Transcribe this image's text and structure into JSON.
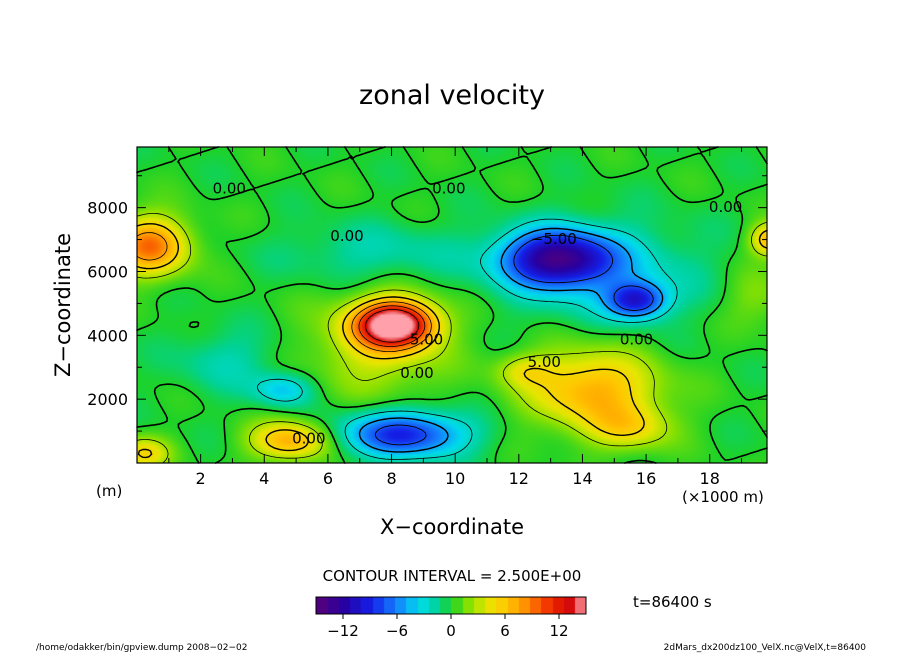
{
  "chart_data": {
    "type": "heatmap",
    "title": "zonal velocity",
    "xlabel": "X−coordinate",
    "ylabel": "Z−coordinate",
    "x_unit_left": "(m)",
    "x_unit_right": "(×1000 m)",
    "xlim": [
      0,
      19.8
    ],
    "ylim": [
      0,
      9900
    ],
    "x_ticks": [
      {
        "value": 2,
        "label": "2"
      },
      {
        "value": 4,
        "label": "4"
      },
      {
        "value": 6,
        "label": "6"
      },
      {
        "value": 8,
        "label": "8"
      },
      {
        "value": 10,
        "label": "10"
      },
      {
        "value": 12,
        "label": "12"
      },
      {
        "value": 14,
        "label": "14"
      },
      {
        "value": 16,
        "label": "16"
      },
      {
        "value": 18,
        "label": "18"
      }
    ],
    "y_ticks": [
      {
        "value": 2000,
        "label": "2000"
      },
      {
        "value": 4000,
        "label": "4000"
      },
      {
        "value": 6000,
        "label": "6000"
      },
      {
        "value": 8000,
        "label": "8000"
      }
    ],
    "contour_interval_text": "CONTOUR INTERVAL = 2.500E+00",
    "time_text": "t=86400 s",
    "colorbar": {
      "range": [
        -15,
        15
      ],
      "ticks": [
        {
          "value": -12,
          "label": "−12"
        },
        {
          "value": -6,
          "label": "−6"
        },
        {
          "value": 0,
          "label": "0"
        },
        {
          "value": 6,
          "label": "6"
        },
        {
          "value": 12,
          "label": "12"
        }
      ]
    },
    "contour_labels": [
      {
        "text": "0.00",
        "x": 2.9,
        "y": 8580
      },
      {
        "text": "0.00",
        "x": 9.8,
        "y": 8580
      },
      {
        "text": "0.00",
        "x": 18.5,
        "y": 8000
      },
      {
        "text": "0.00",
        "x": 6.6,
        "y": 7100
      },
      {
        "text": "−5.00",
        "x": 13.1,
        "y": 7000
      },
      {
        "text": "5.00",
        "x": 9.1,
        "y": 3850
      },
      {
        "text": "0.00",
        "x": 15.7,
        "y": 3850
      },
      {
        "text": "5.00",
        "x": 12.8,
        "y": 3150
      },
      {
        "text": "0.00",
        "x": 8.8,
        "y": 2800
      },
      {
        "text": "0.00",
        "x": 5.4,
        "y": 750
      }
    ],
    "features": [
      {
        "cx": 8.1,
        "cz": 4350,
        "sx": 1.2,
        "sz": 700,
        "amp": 16
      },
      {
        "cx": 7.6,
        "cz": 3700,
        "sx": 2.0,
        "sz": 1500,
        "amp": 4
      },
      {
        "cx": 14.3,
        "cz": 2300,
        "sx": 2.0,
        "sz": 1200,
        "amp": 7
      },
      {
        "cx": 15.5,
        "cz": 1100,
        "sx": 1.3,
        "sz": 700,
        "amp": 4
      },
      {
        "cx": 12.2,
        "cz": 2900,
        "sx": 0.9,
        "sz": 500,
        "amp": 3
      },
      {
        "cx": 0.4,
        "cz": 6800,
        "sx": 1.2,
        "sz": 900,
        "amp": 9
      },
      {
        "cx": 19.9,
        "cz": 7000,
        "sx": 0.6,
        "sz": 500,
        "amp": 7
      },
      {
        "cx": 4.8,
        "cz": 700,
        "sx": 1.2,
        "sz": 600,
        "amp": 7
      },
      {
        "cx": 0.2,
        "cz": 300,
        "sx": 0.8,
        "sz": 500,
        "amp": 5
      },
      {
        "cx": 13.2,
        "cz": 6400,
        "sx": 1.7,
        "sz": 850,
        "amp": -12
      },
      {
        "cx": 15.7,
        "cz": 5100,
        "sx": 0.9,
        "sz": 550,
        "amp": -9
      },
      {
        "cx": 14.7,
        "cz": 6000,
        "sx": 3.0,
        "sz": 1500,
        "amp": -3
      },
      {
        "cx": 8.4,
        "cz": 900,
        "sx": 1.9,
        "sz": 700,
        "amp": -9
      },
      {
        "cx": 4.6,
        "cz": 2300,
        "sx": 0.9,
        "sz": 500,
        "amp": -4
      },
      {
        "cx": 2.8,
        "cz": 3200,
        "sx": 1.6,
        "sz": 1000,
        "amp": -2
      },
      {
        "cx": 7.5,
        "cz": 6600,
        "sx": 2.8,
        "sz": 900,
        "amp": -2
      },
      {
        "cx": 19.5,
        "cz": 5200,
        "sx": 1.0,
        "sz": 900,
        "amp": 2
      }
    ]
  },
  "footer": {
    "left": "/home/odakker/bin/gpview.dump  2008−02−02",
    "right": "2dMars_dx200dz100_VelX.nc@VelX,t=86400"
  }
}
